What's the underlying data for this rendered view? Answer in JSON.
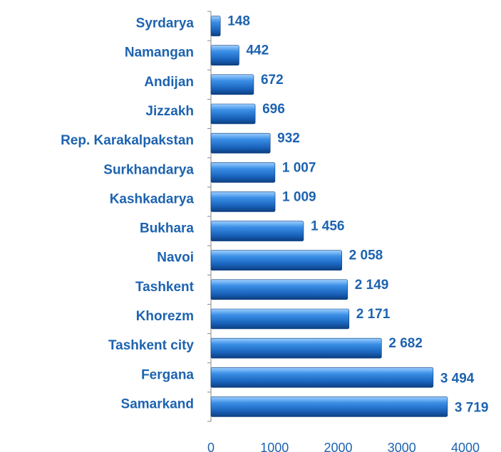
{
  "chart_data": {
    "type": "bar",
    "orientation": "horizontal",
    "categories": [
      "Syrdarya",
      "Namangan",
      "Andijan",
      "Jizzakh",
      "Rep. Karakalpakstan",
      "Surkhandarya",
      "Kashkadarya",
      "Bukhara",
      "Navoi",
      "Tashkent",
      "Khorezm",
      "Tashkent city",
      "Fergana",
      "Samarkand"
    ],
    "values": [
      148,
      442,
      672,
      696,
      932,
      1007,
      1009,
      1456,
      2058,
      2149,
      2171,
      2682,
      3494,
      3719
    ],
    "value_labels": [
      "148",
      "442",
      "672",
      "696",
      "932",
      "1 007",
      "1 009",
      "1 456",
      "2 058",
      "2 149",
      "2 171",
      "2 682",
      "3 494",
      "3 719"
    ],
    "color": "#1f6fc8",
    "xlim": [
      0,
      4000
    ],
    "xticks": [
      0,
      1000,
      2000,
      3000,
      4000
    ],
    "grid": false
  }
}
